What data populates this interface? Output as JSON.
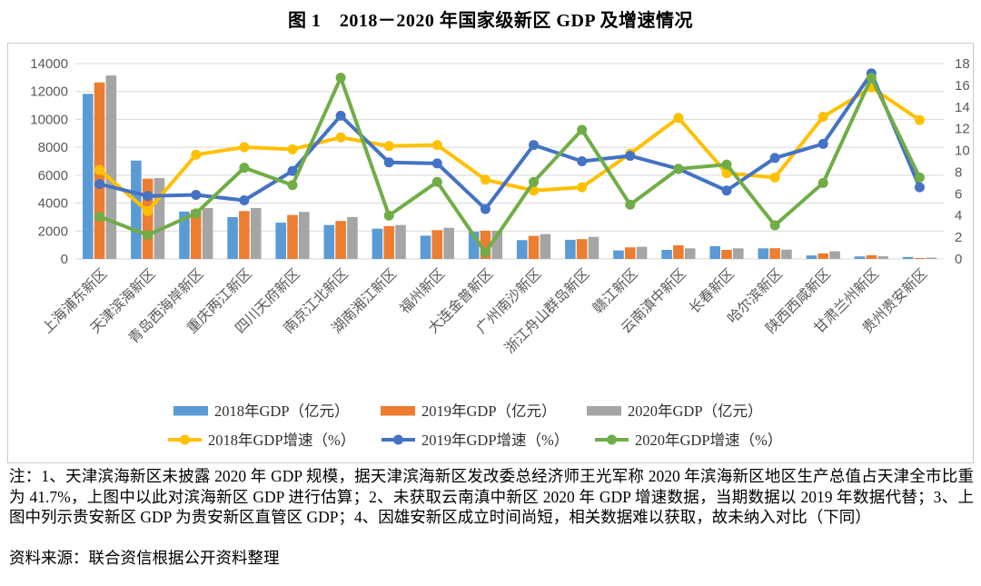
{
  "page": {
    "title": "图 1　2018－2020 年国家级新区 GDP 及增速情况"
  },
  "chart_data": {
    "type": "bar+line-combo",
    "categories": [
      "上海浦东新区",
      "天津滨海新区",
      "青岛西海岸新区",
      "重庆两江新区",
      "四川天府新区",
      "南京江北新区",
      "湖南湘江新区",
      "福州新区",
      "大连金普新区",
      "广州南沙新区",
      "浙江舟山群岛新区",
      "赣江新区",
      "云南滇中新区",
      "长春新区",
      "哈尔滨新区",
      "陕西西咸新区",
      "甘肃兰州新区",
      "贵州贵安新区"
    ],
    "bar_series": [
      {
        "name": "2018年GDP（亿元）",
        "color": "#5B9BD5",
        "axis": "left",
        "values": [
          11830,
          7050,
          3400,
          3000,
          2600,
          2430,
          2170,
          1670,
          1950,
          1350,
          1370,
          610,
          650,
          910,
          760,
          250,
          180,
          140
        ]
      },
      {
        "name": "2019年GDP（亿元）",
        "color": "#ED7D31",
        "axis": "left",
        "values": [
          12650,
          5750,
          3520,
          3430,
          3150,
          2720,
          2350,
          2060,
          2020,
          1650,
          1420,
          830,
          980,
          650,
          770,
          400,
          260,
          70
        ]
      },
      {
        "name": "2020年GDP（亿元）",
        "color": "#A5A5A5",
        "axis": "left",
        "values": [
          13150,
          5800,
          3650,
          3650,
          3370,
          3000,
          2430,
          2230,
          2020,
          1780,
          1580,
          870,
          760,
          760,
          670,
          550,
          190,
          100
        ]
      }
    ],
    "line_series": [
      {
        "name": "2018年GDP增速（%）",
        "color": "#FFC000",
        "axis": "right",
        "values": [
          8.2,
          4.4,
          9.6,
          10.3,
          10.1,
          11.2,
          10.4,
          10.5,
          7.3,
          6.3,
          6.6,
          9.7,
          13.0,
          7.9,
          7.5,
          13.1,
          15.8,
          12.8
        ]
      },
      {
        "name": "2019年GDP增速（%）",
        "color": "#4472C4",
        "axis": "right",
        "values": [
          6.9,
          5.8,
          5.9,
          5.4,
          8.1,
          13.2,
          8.9,
          8.8,
          4.6,
          10.5,
          9.0,
          9.5,
          8.3,
          6.3,
          9.3,
          10.6,
          17.1,
          6.6
        ]
      },
      {
        "name": "2020年GDP增速（%）",
        "color": "#70AD47",
        "axis": "right",
        "values": [
          3.9,
          2.2,
          4.2,
          8.4,
          6.8,
          16.7,
          4.0,
          7.1,
          0.6,
          7.1,
          11.9,
          5.0,
          8.3,
          8.7,
          3.1,
          7.0,
          16.7,
          7.5
        ]
      }
    ],
    "left_axis": {
      "min": 0,
      "max": 14000,
      "step": 2000,
      "labels": [
        "0",
        "2000",
        "4000",
        "6000",
        "8000",
        "10000",
        "12000",
        "14000"
      ]
    },
    "right_axis": {
      "min": 0,
      "max": 18,
      "step": 2,
      "labels": [
        "0",
        "2",
        "4",
        "6",
        "8",
        "10",
        "12",
        "14",
        "16",
        "18"
      ]
    },
    "grid": true,
    "legend_position": "bottom",
    "colors": {
      "gridline": "#D9D9D9",
      "axis_text": "#595959",
      "frame": "#C9C9C9"
    }
  },
  "notes": {
    "note": "注：1、天津滨海新区未披露 2020 年 GDP 规模，据天津滨海新区发改委总经济师王光军称 2020 年滨海新区地区生产总值占天津全市比重为 41.7%，上图中以此对滨海新区 GDP 进行估算；2、未获取云南滇中新区 2020 年 GDP 增速数据，当期数据以 2019 年数据代替；3、上图中列示贵安新区 GDP 为贵安新区直管区 GDP；4、因雄安新区成立时间尚短，相关数据难以获取，故未纳入对比（下同）",
    "source": "资料来源：联合资信根据公开资料整理"
  }
}
